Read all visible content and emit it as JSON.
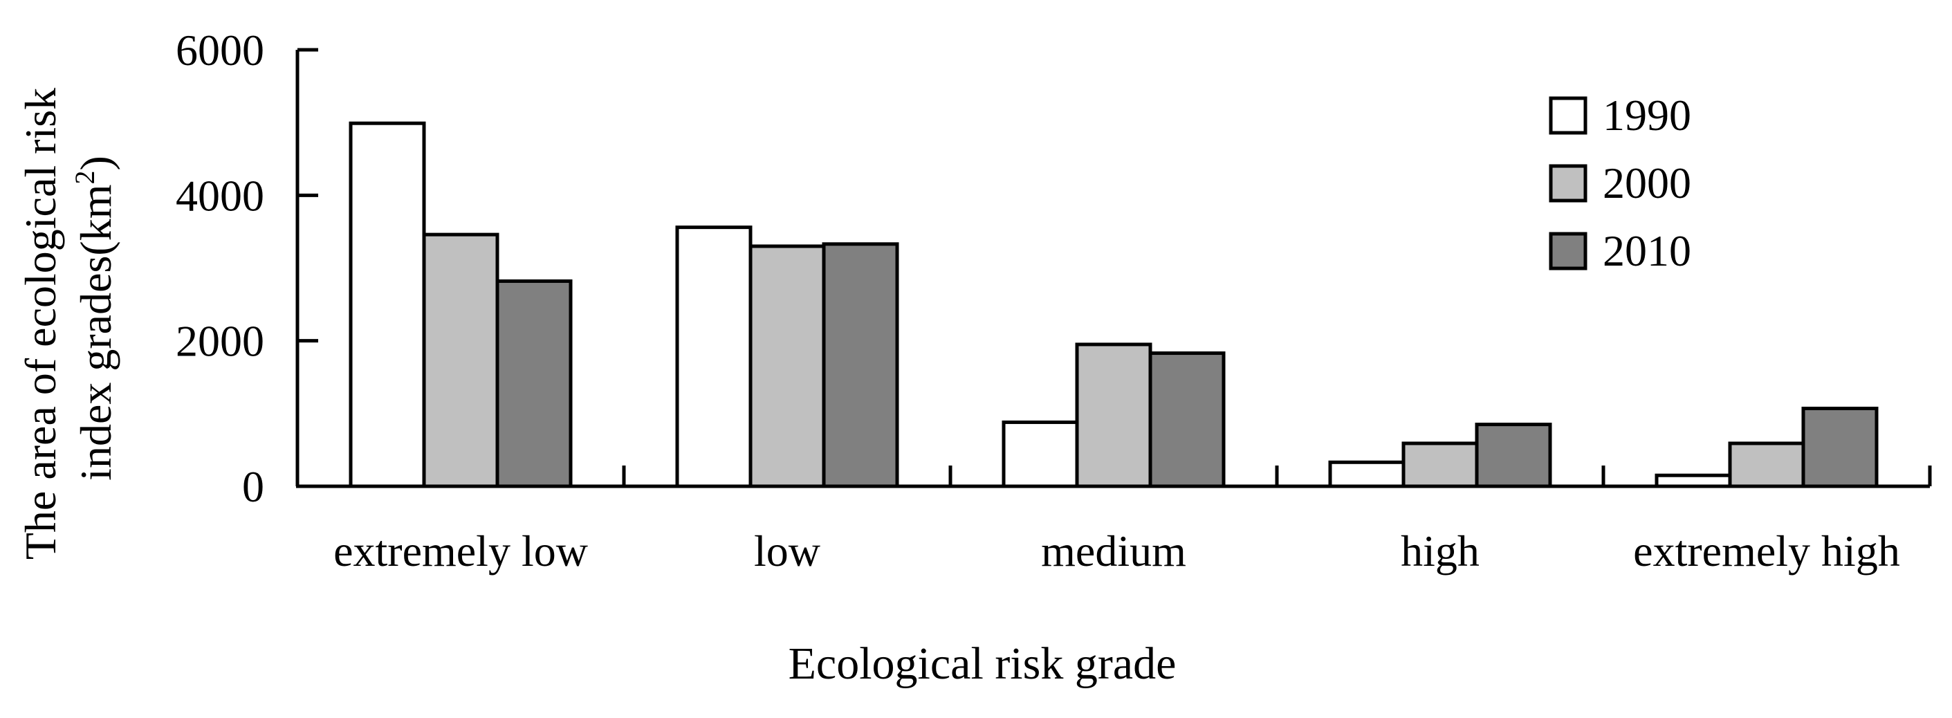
{
  "chart_data": {
    "type": "bar",
    "title": "",
    "xlabel": "Ecological risk grade",
    "ylabel_lines": [
      "The area of ecological risk",
      "index grades(km",
      "2",
      ")"
    ],
    "ylim": [
      0,
      6000
    ],
    "yticks": [
      0,
      2000,
      4000,
      6000
    ],
    "ytick_labels": [
      "0",
      "2000",
      "4000",
      "6000"
    ],
    "grid": false,
    "legend_position": "top-right",
    "categories": [
      "extremely low",
      "low",
      "medium",
      "high",
      "extremely high"
    ],
    "series": [
      {
        "name": "1990",
        "color": "#ffffff",
        "values": [
          4990,
          3560,
          880,
          330,
          150
        ]
      },
      {
        "name": "2000",
        "color": "#c0c0c0",
        "values": [
          3460,
          3300,
          1950,
          590,
          590
        ]
      },
      {
        "name": "2010",
        "color": "#808080",
        "values": [
          2820,
          3330,
          1830,
          850,
          1070
        ]
      }
    ]
  }
}
